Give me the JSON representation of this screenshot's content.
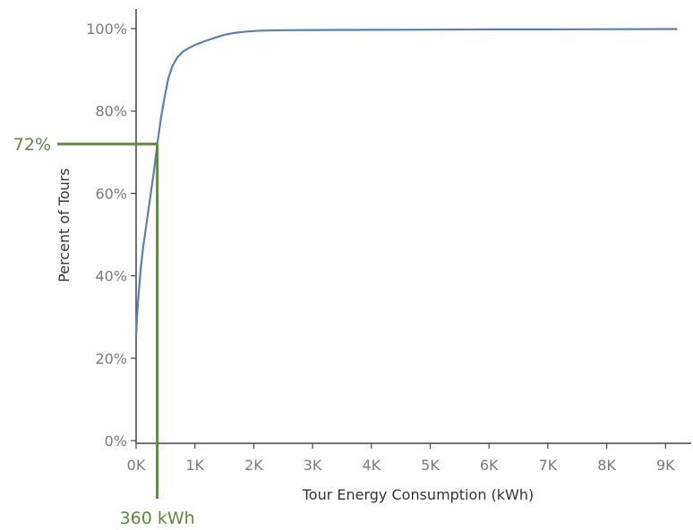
{
  "chart_data": {
    "type": "line",
    "title": "",
    "xlabel": "Tour Energy Consumption (kWh)",
    "ylabel": "Percent of Tours",
    "xlim": [
      0,
      9300
    ],
    "ylim": [
      0,
      100
    ],
    "x_ticks": [
      {
        "value": 0,
        "label": "0K"
      },
      {
        "value": 1000,
        "label": "1K"
      },
      {
        "value": 2000,
        "label": "2K"
      },
      {
        "value": 3000,
        "label": "3K"
      },
      {
        "value": 4000,
        "label": "4K"
      },
      {
        "value": 5000,
        "label": "5K"
      },
      {
        "value": 6000,
        "label": "6K"
      },
      {
        "value": 7000,
        "label": "7K"
      },
      {
        "value": 8000,
        "label": "8K"
      },
      {
        "value": 9000,
        "label": "9K"
      }
    ],
    "y_ticks": [
      {
        "value": 0,
        "label": "0%"
      },
      {
        "value": 20,
        "label": "20%"
      },
      {
        "value": 40,
        "label": "40%"
      },
      {
        "value": 60,
        "label": "60%"
      },
      {
        "value": 80,
        "label": "80%"
      },
      {
        "value": 100,
        "label": "100%"
      }
    ],
    "grid": false,
    "series": [
      {
        "color": "#5b7fae",
        "x": [
          0,
          15,
          40,
          80,
          120,
          170,
          230,
          300,
          360,
          420,
          480,
          550,
          620,
          700,
          800,
          900,
          1000,
          1100,
          1200,
          1350,
          1500,
          1700,
          1900,
          2100,
          2500,
          3000,
          4000,
          5000,
          6000,
          7000,
          8000,
          9000,
          9200
        ],
        "y": [
          25,
          30,
          35,
          42,
          47,
          52,
          58,
          65,
          72,
          78,
          83,
          88,
          91,
          93,
          94.5,
          95.3,
          96,
          96.6,
          97.1,
          97.8,
          98.5,
          99,
          99.3,
          99.5,
          99.6,
          99.65,
          99.7,
          99.75,
          99.8,
          99.8,
          99.85,
          99.9,
          99.9
        ]
      }
    ],
    "annotations": {
      "color": "#5a8a3a",
      "point": {
        "x": 360,
        "y": 72
      },
      "y_label": "72%",
      "x_label": "360 kWh"
    }
  }
}
